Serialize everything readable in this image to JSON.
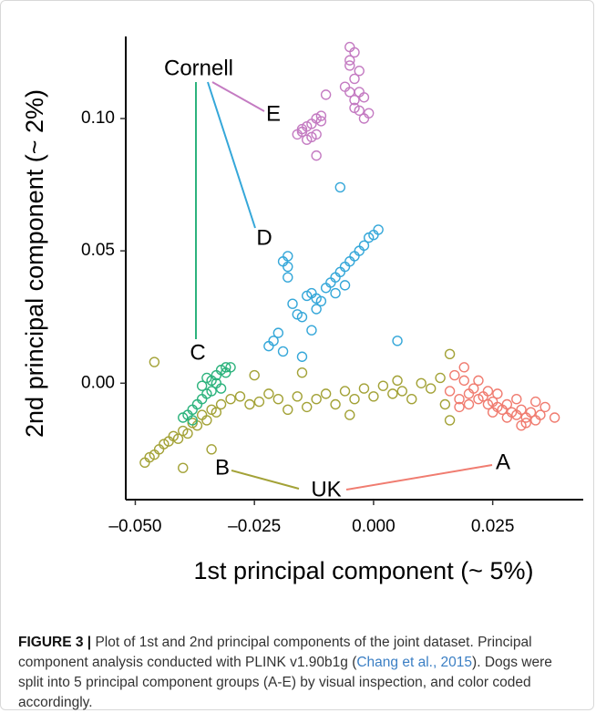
{
  "chart_data": {
    "type": "scatter",
    "x_label": "1st principal component (~ 5%)",
    "y_label": "2nd principal component (~ 2%)",
    "xlim": [
      -0.052,
      0.044
    ],
    "ylim": [
      -0.044,
      0.131
    ],
    "xticks": [
      {
        "value": -0.05,
        "label": "–0.050"
      },
      {
        "value": -0.025,
        "label": "–0.025"
      },
      {
        "value": 0,
        "label": "0.000"
      },
      {
        "value": 0.025,
        "label": "0.025"
      }
    ],
    "yticks": [
      {
        "value": 0,
        "label": "0.00"
      },
      {
        "value": 0.05,
        "label": "0.05"
      },
      {
        "value": 0.1,
        "label": "0.10"
      }
    ],
    "annotations": [
      "Cornell",
      "UK"
    ],
    "series": [
      {
        "name": "A",
        "color": "#f07c70",
        "x": [
          0.016,
          0.017,
          0.018,
          0.019,
          0.02,
          0.021,
          0.022,
          0.023,
          0.024,
          0.025,
          0.026,
          0.027,
          0.028,
          0.029,
          0.03,
          0.031,
          0.032,
          0.033,
          0.034,
          0.035,
          0.036,
          0.038,
          0.018,
          0.02,
          0.022,
          0.024,
          0.026,
          0.028,
          0.03,
          0.032,
          0.034,
          0.019,
          0.025,
          0.031
        ],
        "y": [
          -0.003,
          0.003,
          -0.006,
          0.001,
          -0.004,
          -0.002,
          -0.006,
          -0.005,
          -0.008,
          -0.007,
          -0.009,
          -0.01,
          -0.008,
          -0.011,
          -0.012,
          -0.01,
          -0.013,
          -0.011,
          -0.014,
          -0.012,
          -0.009,
          -0.013,
          -0.009,
          -0.008,
          0.001,
          -0.003,
          -0.004,
          -0.013,
          -0.006,
          -0.015,
          -0.007,
          0.006,
          -0.011,
          -0.016
        ]
      },
      {
        "name": "B",
        "color": "#a3a237",
        "x": [
          -0.048,
          -0.047,
          -0.046,
          -0.045,
          -0.044,
          -0.043,
          -0.042,
          -0.041,
          -0.04,
          -0.039,
          -0.038,
          -0.037,
          -0.036,
          -0.035,
          -0.034,
          -0.033,
          -0.032,
          -0.03,
          -0.028,
          -0.026,
          -0.024,
          -0.022,
          -0.02,
          -0.018,
          -0.016,
          -0.014,
          -0.012,
          -0.01,
          -0.008,
          -0.006,
          -0.004,
          -0.002,
          0.0,
          0.002,
          0.004,
          0.006,
          0.008,
          0.01,
          0.012,
          0.014,
          0.015,
          0.016,
          -0.046,
          -0.034,
          -0.025,
          -0.015,
          -0.005,
          0.005,
          0.016,
          -0.04
        ],
        "y": [
          -0.03,
          -0.028,
          -0.027,
          -0.025,
          -0.023,
          -0.022,
          -0.02,
          -0.021,
          -0.018,
          -0.019,
          -0.015,
          -0.016,
          -0.012,
          -0.014,
          -0.01,
          -0.011,
          -0.008,
          -0.006,
          -0.005,
          -0.008,
          -0.007,
          -0.004,
          -0.006,
          -0.01,
          -0.005,
          -0.009,
          -0.006,
          -0.004,
          -0.008,
          -0.003,
          -0.006,
          -0.002,
          -0.005,
          -0.001,
          -0.004,
          -0.003,
          -0.006,
          0.0,
          -0.002,
          0.002,
          -0.008,
          0.011,
          0.008,
          -0.025,
          0.003,
          0.004,
          -0.012,
          0.001,
          -0.014,
          -0.032
        ]
      },
      {
        "name": "C",
        "color": "#2db37d",
        "x": [
          -0.04,
          -0.039,
          -0.038,
          -0.037,
          -0.036,
          -0.035,
          -0.034,
          -0.033,
          -0.032,
          -0.031,
          -0.03,
          -0.036,
          -0.034,
          -0.033,
          -0.035,
          -0.031,
          -0.038,
          -0.032
        ],
        "y": [
          -0.013,
          -0.012,
          -0.01,
          -0.008,
          -0.006,
          -0.004,
          0.001,
          0.003,
          0.005,
          0.006,
          0.006,
          -0.001,
          -0.003,
          0.0,
          0.002,
          0.004,
          -0.014,
          -0.002
        ]
      },
      {
        "name": "D",
        "color": "#35a7d9",
        "x": [
          -0.022,
          -0.021,
          -0.02,
          -0.019,
          -0.018,
          -0.018,
          -0.017,
          -0.016,
          -0.015,
          -0.014,
          -0.013,
          -0.012,
          -0.011,
          -0.01,
          -0.009,
          -0.008,
          -0.007,
          -0.006,
          -0.005,
          -0.004,
          -0.003,
          -0.002,
          -0.001,
          0.0,
          0.001,
          -0.019,
          -0.018,
          -0.012,
          -0.008,
          -0.007,
          -0.013,
          0.005,
          -0.006,
          -0.015
        ],
        "y": [
          0.014,
          0.016,
          0.019,
          0.046,
          0.048,
          0.044,
          0.03,
          0.026,
          0.025,
          0.033,
          0.034,
          0.032,
          0.031,
          0.036,
          0.038,
          0.04,
          0.042,
          0.044,
          0.046,
          0.048,
          0.05,
          0.052,
          0.055,
          0.056,
          0.058,
          0.012,
          0.04,
          0.028,
          0.034,
          0.074,
          0.02,
          0.016,
          0.037,
          0.01
        ]
      },
      {
        "name": "E",
        "color": "#c47bc2",
        "x": [
          -0.016,
          -0.015,
          -0.014,
          -0.013,
          -0.012,
          -0.011,
          -0.014,
          -0.013,
          -0.012,
          -0.015,
          -0.011,
          -0.012,
          -0.01,
          -0.005,
          -0.004,
          -0.005,
          -0.003,
          -0.004,
          -0.006,
          -0.005,
          -0.003,
          -0.002,
          -0.004,
          -0.003,
          -0.001,
          -0.002,
          -0.004,
          -0.005
        ],
        "y": [
          0.094,
          0.095,
          0.097,
          0.098,
          0.1,
          0.099,
          0.092,
          0.093,
          0.086,
          0.096,
          0.101,
          0.094,
          0.109,
          0.127,
          0.125,
          0.12,
          0.118,
          0.115,
          0.112,
          0.11,
          0.11,
          0.108,
          0.107,
          0.103,
          0.102,
          0.1,
          0.104,
          0.122
        ]
      }
    ]
  },
  "caption": {
    "label": "FIGURE 3 |",
    "text_1": "Plot of 1st and 2nd principal components of the joint dataset. Principal component analysis conducted with PLINK v1.90b1g (",
    "citation": "Chang et al., 2015",
    "text_2": "). Dogs were split into 5 principal component groups (A-E) by visual inspection, and color coded accordingly."
  }
}
